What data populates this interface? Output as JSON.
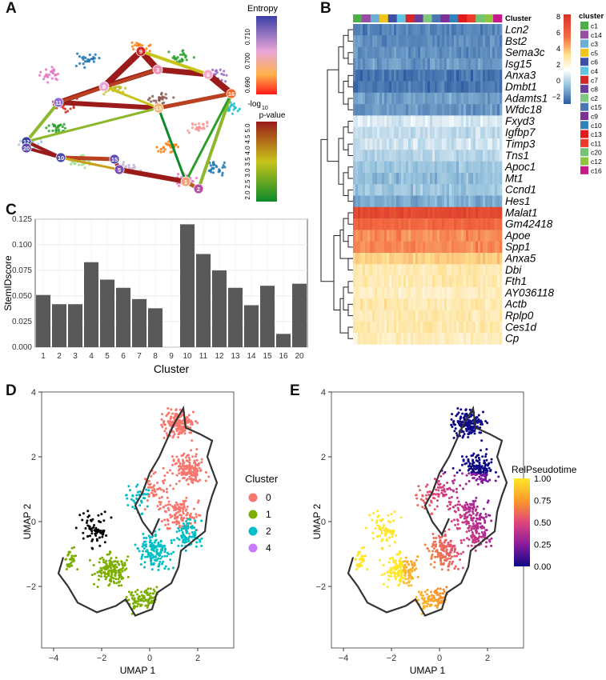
{
  "panels": {
    "a": "A",
    "b": "B",
    "c": "C",
    "d": "D",
    "e": "E"
  },
  "panel_a": {
    "entropy_legend": {
      "title": "Entropy",
      "ticks": [
        "0.710",
        "0.700",
        "0.690"
      ]
    },
    "pvalue_legend": {
      "title_line1": "-log",
      "title_sub": "10",
      "title_line2": "p-value",
      "ticks": [
        "5.0",
        "4.5",
        "4.0",
        "3.5",
        "3.0",
        "2.5",
        "2.0"
      ]
    },
    "node_labels": [
      "9",
      "8",
      "3",
      "6",
      "16",
      "11",
      "13",
      "12",
      "20",
      "10",
      "15",
      "5",
      "1",
      "2"
    ]
  },
  "panel_b": {
    "top_bar_label": "Cluster",
    "genes": [
      "Lcn2",
      "Bst2",
      "Sema3c",
      "Isg15",
      "Anxa3",
      "Dmbt1",
      "Adamts1",
      "Wfdc18",
      "Fxyd3",
      "Igfbp7",
      "Timp3",
      "Tns1",
      "Apoc1",
      "Mt1",
      "Ccnd1",
      "Hes1",
      "Malat1",
      "Gm42418",
      "Apoe",
      "Spp1",
      "Anxa5",
      "Dbi",
      "Fth1",
      "AY036118",
      "Actb",
      "Rplp0",
      "Ces1d",
      "Cp"
    ],
    "scale_ticks": [
      "8",
      "6",
      "4",
      "2",
      "0",
      "−2"
    ],
    "cluster_legend_title": "cluster",
    "clusters": [
      "c1",
      "c14",
      "c3",
      "c5",
      "c6",
      "c4",
      "c7",
      "c8",
      "c2",
      "c15",
      "c9",
      "c10",
      "c13",
      "c11",
      "c20",
      "c12",
      "c16"
    ],
    "cluster_colors": [
      "#4daf4a",
      "#984ea3",
      "#6baed6",
      "#f0c419",
      "#3f4fa8",
      "#5fc5e0",
      "#d62728",
      "#6a3d9a",
      "#7fc97f",
      "#4a76b5",
      "#7b3294",
      "#3182bd",
      "#e31a1c",
      "#ef3b2c",
      "#74c476",
      "#8dc63f",
      "#c51b8a"
    ]
  },
  "chart_data": [
    {
      "type": "bar",
      "panel": "C",
      "categories": [
        "1",
        "2",
        "3",
        "4",
        "5",
        "6",
        "7",
        "8",
        "9",
        "10",
        "11",
        "12",
        "13",
        "14",
        "15",
        "16",
        "20"
      ],
      "values": [
        0.051,
        0.042,
        0.042,
        0.083,
        0.066,
        0.058,
        0.047,
        0.038,
        null,
        0.12,
        0.091,
        0.075,
        0.058,
        0.041,
        0.06,
        0.013,
        0.062
      ],
      "xlabel": "Cluster",
      "ylabel": "StemIDscore",
      "ylim": [
        0,
        0.125
      ],
      "yticks": [
        "0.000",
        "0.025",
        "0.050",
        "0.075",
        "0.100",
        "0.125"
      ],
      "grid": true,
      "bar_color": "#595959"
    },
    {
      "type": "scatter",
      "panel": "D",
      "xlabel": "UMAP 1",
      "ylabel": "UMAP 2",
      "xlim": [
        -4.5,
        3.5
      ],
      "ylim": [
        -3.9,
        4.0
      ],
      "xticks": [
        "−4",
        "−2",
        "0",
        "2"
      ],
      "yticks": [
        "−2",
        "0",
        "2",
        "4"
      ],
      "legend": {
        "title": "Cluster",
        "position": "right",
        "items": [
          "0",
          "1",
          "2",
          "4"
        ]
      },
      "series_colors": [
        "#f8766d",
        "#7cae00",
        "#00bfc4",
        "#c77cff"
      ]
    },
    {
      "type": "scatter",
      "panel": "E",
      "xlabel": "UMAP 1",
      "ylabel": "UMAP 2",
      "xlim": [
        -4.5,
        3.5
      ],
      "ylim": [
        -3.9,
        4.0
      ],
      "xticks": [
        "−4",
        "−2",
        "0",
        "2"
      ],
      "yticks": [
        "−2",
        "0",
        "2",
        "4"
      ],
      "colorbar": {
        "title": "RelPseudotime",
        "ticks": [
          "1.00",
          "0.75",
          "0.50",
          "0.25",
          "0.00"
        ],
        "range": [
          0,
          1
        ]
      }
    }
  ]
}
